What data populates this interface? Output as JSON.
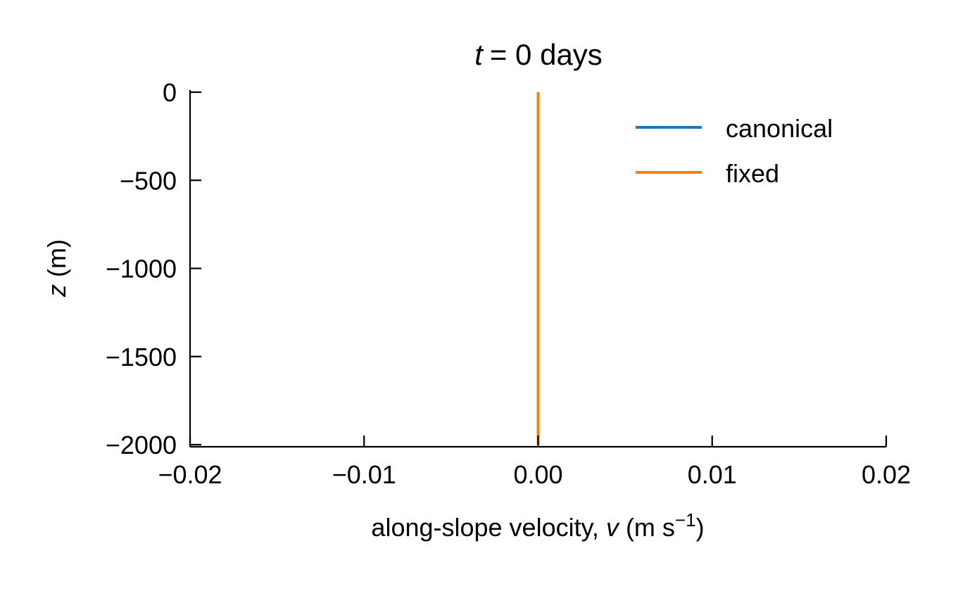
{
  "chart_data": {
    "type": "line",
    "title": {
      "var": "t",
      "rest": "= 0 days"
    },
    "xlabel": {
      "pre": "along-slope velocity, ",
      "var": "v",
      "unit": " (m s",
      "exp": "−1",
      "close": ")"
    },
    "ylabel": {
      "var": "z",
      "rest": " (m)"
    },
    "xlim": [
      -0.02,
      0.02
    ],
    "ylim": [
      -2000,
      0
    ],
    "xticks": [
      -0.02,
      -0.01,
      0.0,
      0.01,
      0.02
    ],
    "xtick_labels": [
      "−0.02",
      "−0.01",
      "0.00",
      "0.01",
      "0.02"
    ],
    "yticks": [
      0,
      -500,
      -1000,
      -1500,
      -2000
    ],
    "ytick_labels": [
      "0",
      "−500",
      "−1000",
      "−1500",
      "−2000"
    ],
    "grid": false,
    "legend_position": "top-right",
    "series": [
      {
        "name": "canonical",
        "color": "#1f77b4",
        "x": [
          0.0,
          0.0
        ],
        "y": [
          0,
          -2000
        ]
      },
      {
        "name": "fixed",
        "color": "#ff7f0e",
        "x": [
          0.0,
          0.0
        ],
        "y": [
          0,
          -2000
        ]
      }
    ]
  }
}
